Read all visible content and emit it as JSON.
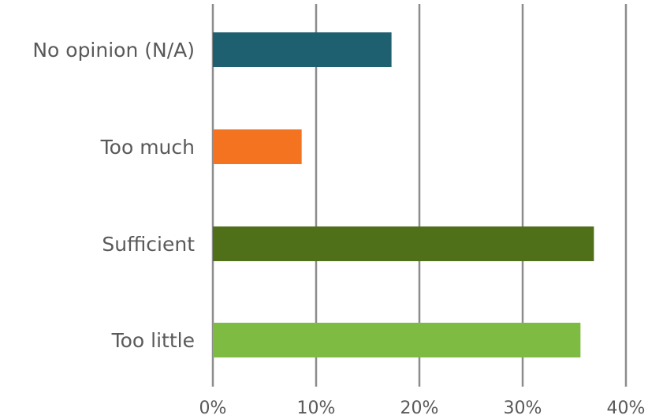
{
  "chart_data": {
    "type": "bar",
    "orientation": "horizontal",
    "title": "",
    "xlabel": "",
    "ylabel": "",
    "categories": [
      "No opinion (N/A)",
      "Too much",
      "Sufficient",
      "Too little"
    ],
    "values": [
      17.3,
      8.6,
      36.9,
      35.6
    ],
    "colors": [
      "#1f6070",
      "#f47320",
      "#4f7019",
      "#7dbb42"
    ],
    "xlim": [
      0,
      40
    ],
    "ticks": [
      0,
      10,
      20,
      30,
      40
    ],
    "tick_labels": [
      "0%",
      "10%",
      "20%",
      "30%",
      "40%"
    ],
    "grid": true,
    "legend": "none"
  }
}
